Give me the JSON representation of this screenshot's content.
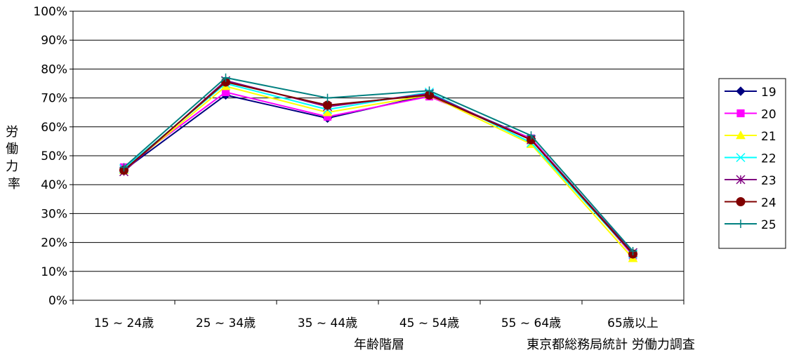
{
  "chart_data": {
    "type": "line",
    "title": "",
    "ylabel": "労働力率",
    "xlabel": "年齢階層",
    "source": "東京都総務局統計 労働力調査",
    "ylim": [
      0,
      100
    ],
    "yticks": [
      0,
      10,
      20,
      30,
      40,
      50,
      60,
      70,
      80,
      90,
      100
    ],
    "ytick_labels": [
      "0%",
      "10%",
      "20%",
      "30%",
      "40%",
      "50%",
      "60%",
      "70%",
      "80%",
      "90%",
      "100%"
    ],
    "categories": [
      "15 ~ 24歳",
      "25 ~ 34歳",
      "35 ~ 44歳",
      "45 ~ 54歳",
      "55 ~ 64歳",
      "65歳以上"
    ],
    "grid": true,
    "legend_position": "right",
    "series": [
      {
        "name": "19",
        "color": "#000080",
        "marker": "diamond",
        "values": [
          45,
          71,
          63,
          71,
          56,
          16
        ]
      },
      {
        "name": "20",
        "color": "#ff00ff",
        "marker": "square",
        "values": [
          46,
          72,
          63.5,
          70.5,
          56,
          15.5
        ]
      },
      {
        "name": "21",
        "color": "#ffff00",
        "marker": "triangle",
        "values": [
          45,
          74,
          65,
          71,
          54,
          14.5
        ]
      },
      {
        "name": "22",
        "color": "#00ffff",
        "marker": "x",
        "values": [
          45.5,
          75,
          66,
          72,
          54.5,
          16
        ]
      },
      {
        "name": "23",
        "color": "#800080",
        "marker": "star",
        "values": [
          44.5,
          76,
          67,
          71.5,
          55.5,
          16.5
        ]
      },
      {
        "name": "24",
        "color": "#800000",
        "marker": "circle",
        "values": [
          45,
          75.5,
          67.5,
          71,
          55.5,
          16
        ]
      },
      {
        "name": "25",
        "color": "#008080",
        "marker": "plus",
        "values": [
          46,
          77,
          70,
          72.5,
          57,
          17
        ]
      }
    ]
  }
}
